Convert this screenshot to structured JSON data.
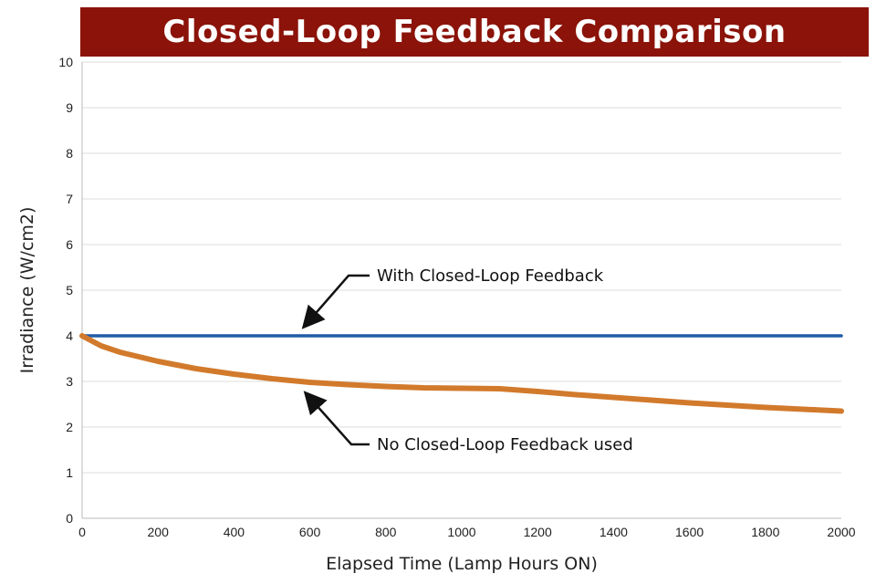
{
  "chart_data": {
    "type": "line",
    "title": "Closed-Loop Feedback Comparison",
    "xlabel": "Elapsed Time (Lamp Hours ON)",
    "ylabel": "Irradiance (W/cm2)",
    "xlim": [
      0,
      2000
    ],
    "ylim": [
      0,
      10
    ],
    "xticks": [
      0,
      200,
      400,
      600,
      800,
      1000,
      1200,
      1400,
      1600,
      1800,
      2000
    ],
    "yticks": [
      0,
      1,
      2,
      3,
      4,
      5,
      6,
      7,
      8,
      9,
      10
    ],
    "grid": true,
    "series": [
      {
        "name": "With Closed-Loop Feedback",
        "color": "#1f5ca8",
        "x": [
          0,
          2000
        ],
        "y": [
          4,
          4
        ]
      },
      {
        "name": "No Closed-Loop Feedback used",
        "color": "#d27a2c",
        "x": [
          0,
          50,
          100,
          200,
          300,
          400,
          500,
          600,
          700,
          800,
          900,
          1000,
          1100,
          1200,
          1300,
          1400,
          1500,
          1600,
          1700,
          1800,
          1900,
          2000
        ],
        "y": [
          4,
          3.78,
          3.64,
          3.44,
          3.28,
          3.16,
          3.06,
          2.98,
          2.93,
          2.89,
          2.86,
          2.85,
          2.84,
          2.78,
          2.71,
          2.65,
          2.59,
          2.53,
          2.48,
          2.43,
          2.39,
          2.35
        ]
      }
    ],
    "annotations": [
      "With Closed-Loop Feedback",
      "No Closed-Loop Feedback used"
    ]
  }
}
